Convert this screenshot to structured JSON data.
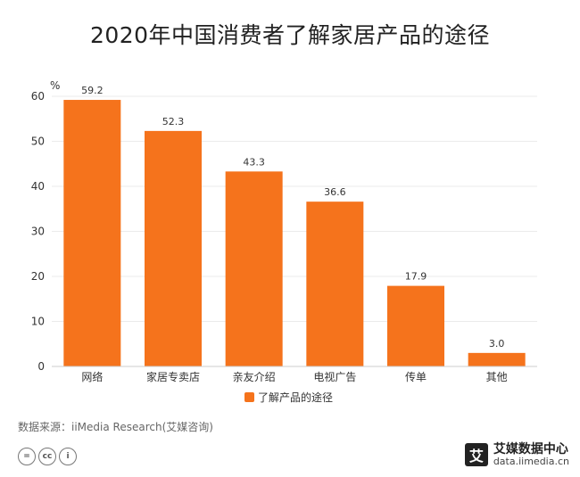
{
  "chart_data": {
    "type": "bar",
    "title": "2020年中国消费者了解家居产品的途径",
    "ylabel": "%",
    "categories": [
      "网络",
      "家居专卖店",
      "亲友介绍",
      "电视广告",
      "传单",
      "其他"
    ],
    "series": [
      {
        "name": "了解产品的途径",
        "values": [
          59.2,
          52.3,
          43.3,
          36.6,
          17.9,
          3.0
        ]
      }
    ],
    "value_labels": [
      "59.2",
      "52.3",
      "43.3",
      "36.6",
      "17.9",
      "3.0"
    ],
    "yticks": [
      "0",
      "10",
      "20",
      "30",
      "40",
      "50",
      "60"
    ],
    "ylim": [
      0,
      60
    ],
    "grid": true,
    "legend_position": "bottom",
    "bar_color": "#F5731C"
  },
  "footer": {
    "source": "数据来源：iiMedia Research(艾媒咨询)",
    "license_icons": [
      "=",
      "cc",
      "i"
    ],
    "brand_logo": "艾",
    "brand_name": "艾媒数据中心",
    "brand_url": "data.iimedia.cn"
  }
}
